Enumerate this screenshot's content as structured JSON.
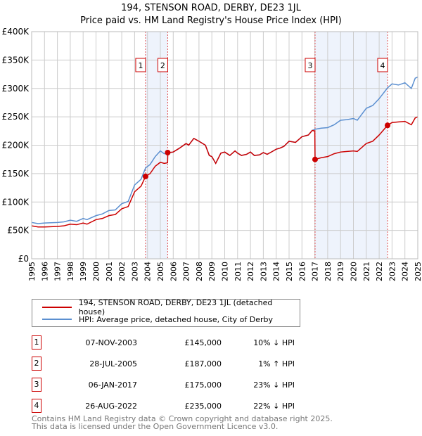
{
  "title": "194, STENSON ROAD, DERBY, DE23 1JL",
  "subtitle": "Price paid vs. HM Land Registry's House Price Index (HPI)",
  "chart_data": {
    "type": "line",
    "xlim": [
      1995,
      2025
    ],
    "ylim": [
      0,
      400000
    ],
    "yticks": [
      0,
      50000,
      100000,
      150000,
      200000,
      250000,
      300000,
      350000,
      400000
    ],
    "ytick_labels": [
      "£0",
      "£50K",
      "£100K",
      "£150K",
      "£200K",
      "£250K",
      "£300K",
      "£350K",
      "£400K"
    ],
    "xticks": [
      1995,
      1996,
      1997,
      1998,
      1999,
      2000,
      2001,
      2002,
      2003,
      2004,
      2005,
      2006,
      2007,
      2008,
      2009,
      2010,
      2011,
      2012,
      2013,
      2014,
      2015,
      2016,
      2017,
      2018,
      2019,
      2020,
      2021,
      2022,
      2023,
      2024,
      2025
    ],
    "series": [
      {
        "name": "194, STENSON ROAD, DERBY, DE23 1JL (detached house)",
        "color": "#cc0000",
        "points": [
          [
            1995,
            58
          ],
          [
            1995.5,
            56
          ],
          [
            1996,
            56
          ],
          [
            1997,
            57
          ],
          [
            1997.5,
            58
          ],
          [
            1998,
            61
          ],
          [
            1998.5,
            60
          ],
          [
            1999,
            63
          ],
          [
            1999.3,
            61
          ],
          [
            2000,
            69
          ],
          [
            2000.5,
            71
          ],
          [
            2001,
            76
          ],
          [
            2001.5,
            78
          ],
          [
            2002,
            88
          ],
          [
            2002.5,
            92
          ],
          [
            2003,
            118
          ],
          [
            2003.5,
            128
          ],
          [
            2003.85,
            145
          ],
          [
            2004.2,
            150
          ],
          [
            2004.6,
            163
          ],
          [
            2005,
            170
          ],
          [
            2005.3,
            168
          ],
          [
            2005.56,
            169
          ],
          [
            2005.58,
            187
          ],
          [
            2006,
            188
          ],
          [
            2006.5,
            195
          ],
          [
            2007,
            203
          ],
          [
            2007.2,
            200
          ],
          [
            2007.6,
            212
          ],
          [
            2008,
            207
          ],
          [
            2008.5,
            200
          ],
          [
            2008.8,
            182
          ],
          [
            2009,
            180
          ],
          [
            2009.3,
            168
          ],
          [
            2009.7,
            186
          ],
          [
            2010,
            188
          ],
          [
            2010.4,
            182
          ],
          [
            2010.8,
            190
          ],
          [
            2011,
            186
          ],
          [
            2011.3,
            182
          ],
          [
            2011.7,
            184
          ],
          [
            2012,
            188
          ],
          [
            2012.3,
            182
          ],
          [
            2012.7,
            183
          ],
          [
            2013,
            187
          ],
          [
            2013.3,
            184
          ],
          [
            2013.7,
            189
          ],
          [
            2014,
            193
          ],
          [
            2014.3,
            195
          ],
          [
            2014.6,
            198
          ],
          [
            2015,
            207
          ],
          [
            2015.5,
            205
          ],
          [
            2016,
            215
          ],
          [
            2016.5,
            218
          ],
          [
            2016.8,
            226
          ],
          [
            2017,
            225
          ],
          [
            2017.02,
            175
          ],
          [
            2017.5,
            178
          ],
          [
            2018,
            180
          ],
          [
            2018.5,
            185
          ],
          [
            2019,
            188
          ],
          [
            2019.5,
            189
          ],
          [
            2020,
            190
          ],
          [
            2020.3,
            189
          ],
          [
            2021,
            203
          ],
          [
            2021.5,
            207
          ],
          [
            2022,
            218
          ],
          [
            2022.65,
            235
          ],
          [
            2023,
            240
          ],
          [
            2023.5,
            241
          ],
          [
            2024,
            242
          ],
          [
            2024.5,
            236
          ],
          [
            2024.8,
            248
          ],
          [
            2025,
            250
          ]
        ]
      },
      {
        "name": "HPI: Average price, detached house, City of Derby",
        "color": "#5b8fd0",
        "points": [
          [
            1995,
            64
          ],
          [
            1995.5,
            62
          ],
          [
            1996,
            63
          ],
          [
            1997,
            64
          ],
          [
            1997.5,
            65
          ],
          [
            1998,
            68
          ],
          [
            1998.5,
            66
          ],
          [
            1999,
            71
          ],
          [
            1999.3,
            69
          ],
          [
            2000,
            76
          ],
          [
            2000.5,
            79
          ],
          [
            2001,
            85
          ],
          [
            2001.5,
            86
          ],
          [
            2002,
            97
          ],
          [
            2002.5,
            101
          ],
          [
            2003,
            130
          ],
          [
            2003.5,
            140
          ],
          [
            2003.85,
            160
          ],
          [
            2004.2,
            166
          ],
          [
            2004.6,
            180
          ],
          [
            2005,
            190
          ],
          [
            2005.3,
            185
          ],
          [
            2005.56,
            186
          ],
          [
            2006,
            188
          ],
          [
            2006.5,
            195
          ],
          [
            2007,
            203
          ],
          [
            2007.2,
            200
          ],
          [
            2007.6,
            212
          ],
          [
            2008,
            207
          ],
          [
            2008.5,
            200
          ],
          [
            2008.8,
            182
          ],
          [
            2009,
            180
          ],
          [
            2009.3,
            168
          ],
          [
            2009.7,
            186
          ],
          [
            2010,
            188
          ],
          [
            2010.4,
            182
          ],
          [
            2010.8,
            190
          ],
          [
            2011,
            186
          ],
          [
            2011.3,
            182
          ],
          [
            2011.7,
            184
          ],
          [
            2012,
            188
          ],
          [
            2012.3,
            182
          ],
          [
            2012.7,
            183
          ],
          [
            2013,
            187
          ],
          [
            2013.3,
            184
          ],
          [
            2013.7,
            189
          ],
          [
            2014,
            193
          ],
          [
            2014.3,
            195
          ],
          [
            2014.6,
            198
          ],
          [
            2015,
            207
          ],
          [
            2015.5,
            205
          ],
          [
            2016,
            215
          ],
          [
            2016.5,
            218
          ],
          [
            2016.8,
            226
          ],
          [
            2017,
            228
          ],
          [
            2017.5,
            230
          ],
          [
            2018,
            231
          ],
          [
            2018.5,
            236
          ],
          [
            2019,
            244
          ],
          [
            2019.5,
            245
          ],
          [
            2020,
            247
          ],
          [
            2020.3,
            244
          ],
          [
            2021,
            265
          ],
          [
            2021.5,
            270
          ],
          [
            2022,
            282
          ],
          [
            2022.65,
            301
          ],
          [
            2023,
            308
          ],
          [
            2023.5,
            306
          ],
          [
            2024,
            310
          ],
          [
            2024.5,
            300
          ],
          [
            2024.8,
            318
          ],
          [
            2025,
            320
          ]
        ]
      }
    ],
    "sales": [
      {
        "n": "1",
        "x": 2003.85,
        "y": 145
      },
      {
        "n": "2",
        "x": 2005.57,
        "y": 187
      },
      {
        "n": "3",
        "x": 2017.02,
        "y": 175
      },
      {
        "n": "4",
        "x": 2022.65,
        "y": 235
      }
    ],
    "shaded": [
      [
        2003.85,
        2005.57
      ],
      [
        2017.02,
        2022.65
      ]
    ]
  },
  "legend": {
    "red": "194, STENSON ROAD, DERBY, DE23 1JL (detached house)",
    "blue": "HPI: Average price, detached house, City of Derby"
  },
  "rows": [
    {
      "n": "1",
      "date": "07-NOV-2003",
      "price": "£145,000",
      "hpi": "10% ↓ HPI"
    },
    {
      "n": "2",
      "date": "28-JUL-2005",
      "price": "£187,000",
      "hpi": "1% ↑ HPI"
    },
    {
      "n": "3",
      "date": "06-JAN-2017",
      "price": "£175,000",
      "hpi": "23% ↓ HPI"
    },
    {
      "n": "4",
      "date": "26-AUG-2022",
      "price": "£235,000",
      "hpi": "22% ↓ HPI"
    }
  ],
  "footer": [
    "Contains HM Land Registry data © Crown copyright and database right 2025.",
    "This data is licensed under the Open Government Licence v3.0."
  ]
}
